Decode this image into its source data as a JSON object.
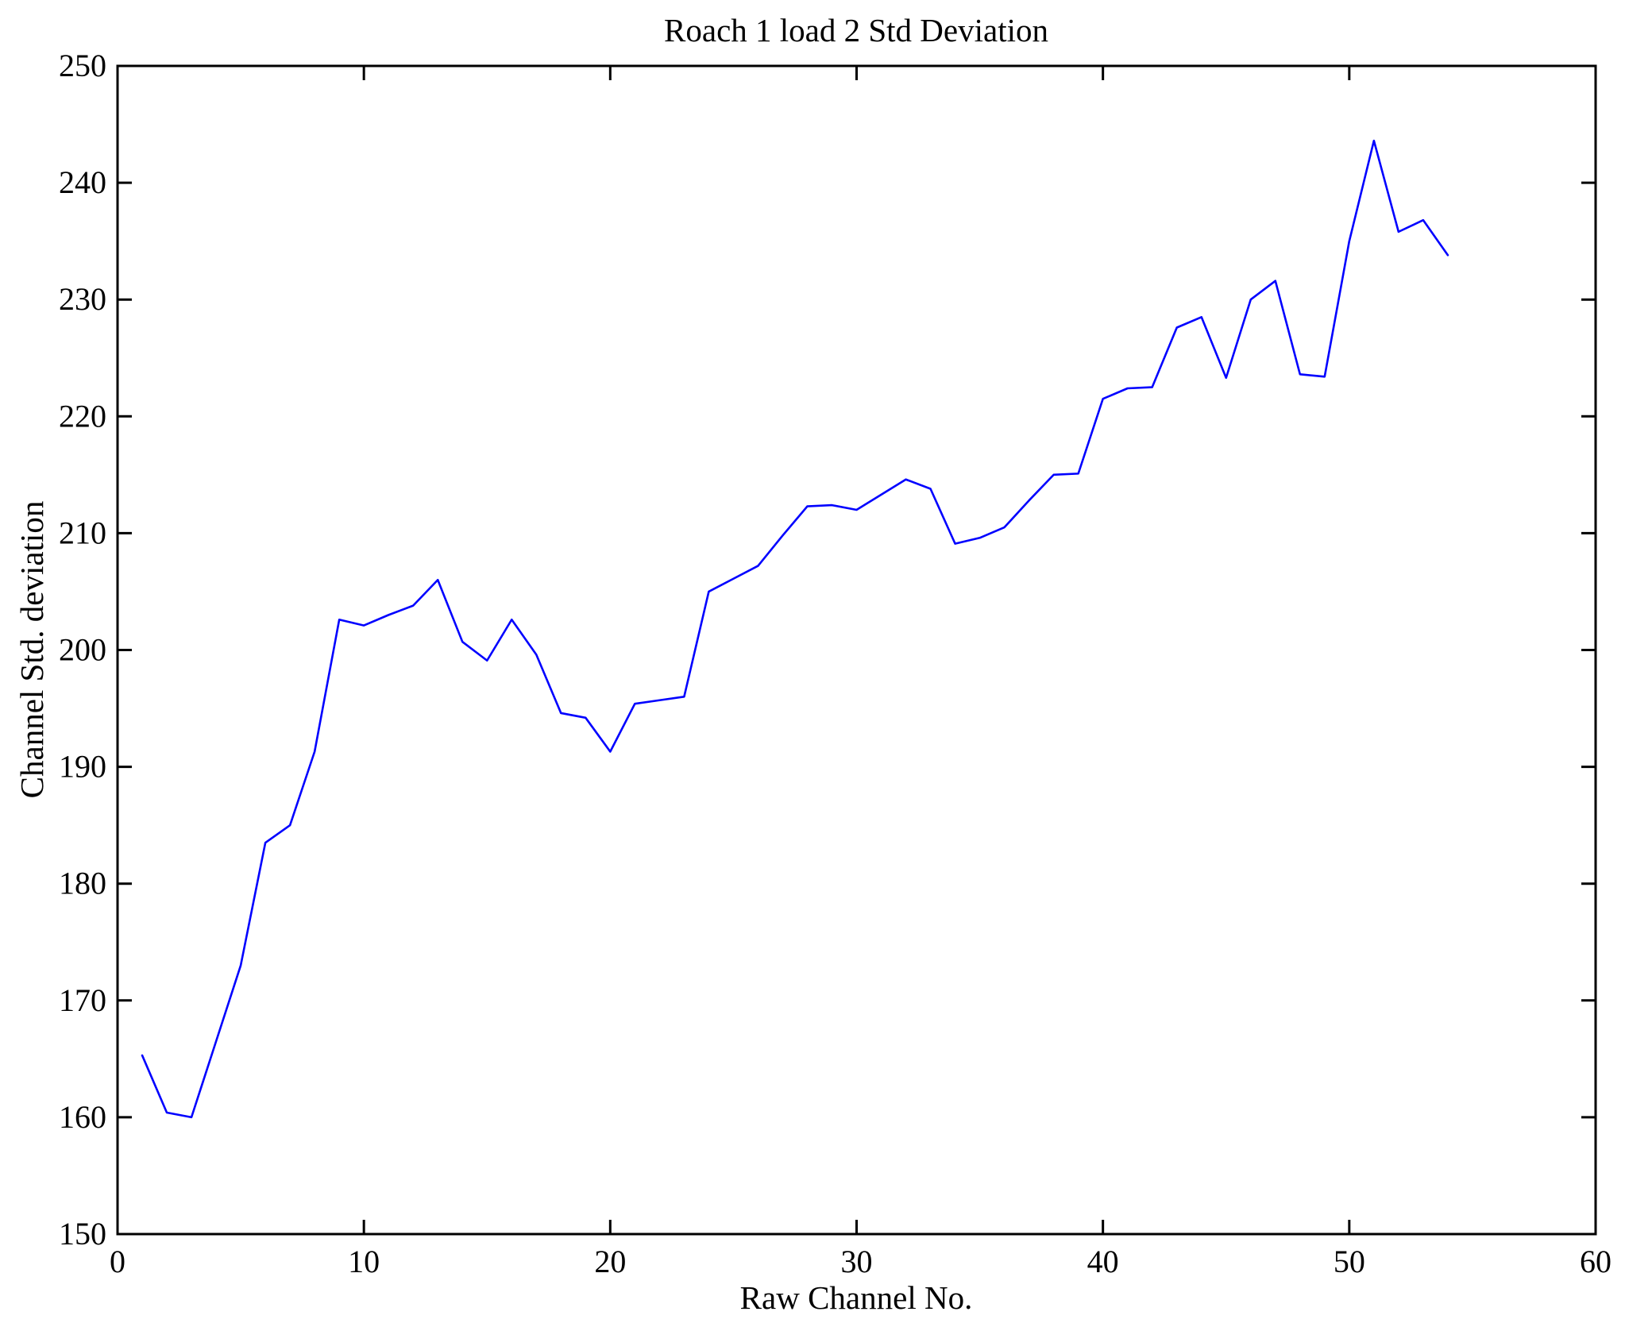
{
  "figure": {
    "background_color": "#ffffff",
    "axis_color": "#000000"
  },
  "chart_data": {
    "type": "line",
    "title": "Roach 1 load 2 Std Deviation",
    "xlabel": "Raw Channel No.",
    "ylabel": "Channel Std. deviation",
    "xlim": [
      0,
      60
    ],
    "ylim": [
      150,
      250
    ],
    "xticks": [
      0,
      10,
      20,
      30,
      40,
      50,
      60
    ],
    "yticks": [
      150,
      160,
      170,
      180,
      190,
      200,
      210,
      220,
      230,
      240,
      250
    ],
    "grid": false,
    "legend": null,
    "line_color": "#0000FF",
    "series": [
      {
        "name": "channel-std-deviation",
        "x": [
          1,
          2,
          3,
          4,
          5,
          6,
          7,
          8,
          9,
          10,
          11,
          12,
          13,
          14,
          15,
          16,
          17,
          18,
          19,
          20,
          21,
          22,
          23,
          24,
          25,
          26,
          27,
          28,
          29,
          30,
          31,
          32,
          33,
          34,
          35,
          36,
          37,
          38,
          39,
          40,
          41,
          42,
          43,
          44,
          45,
          46,
          47,
          48,
          49,
          50,
          51,
          52,
          53,
          54
        ],
        "y": [
          165.3,
          160.4,
          160.0,
          166.5,
          173.0,
          183.5,
          185.0,
          191.3,
          202.6,
          202.1,
          203.0,
          203.8,
          206.0,
          200.7,
          199.1,
          202.6,
          199.6,
          194.6,
          194.2,
          191.3,
          195.4,
          195.7,
          196.0,
          205.0,
          206.1,
          207.2,
          209.8,
          212.3,
          212.4,
          212.0,
          213.3,
          214.6,
          213.8,
          209.1,
          209.6,
          210.5,
          212.8,
          215.0,
          215.1,
          221.5,
          222.4,
          222.5,
          227.6,
          228.5,
          223.3,
          230.0,
          231.6,
          223.6,
          223.4,
          235.0,
          243.6,
          235.8,
          236.8,
          233.8
        ]
      }
    ]
  }
}
